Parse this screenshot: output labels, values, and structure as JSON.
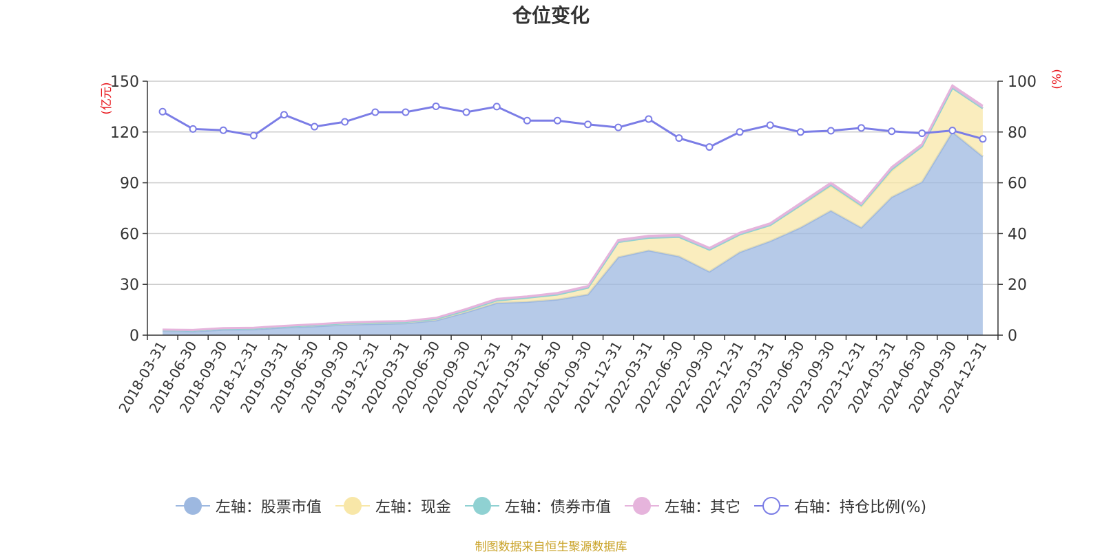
{
  "chart_data": {
    "type": "area",
    "title": "仓位变化",
    "left_unit": "(亿元)",
    "right_unit": "(%)",
    "left_ylim": [
      0,
      150
    ],
    "left_ticks": [
      0,
      30,
      60,
      90,
      120,
      150
    ],
    "right_ylim": [
      0,
      100
    ],
    "right_ticks": [
      0,
      20,
      40,
      60,
      80,
      100
    ],
    "grid": true,
    "legend_position": "bottom",
    "categories": [
      "2018-03-31",
      "2018-06-30",
      "2018-09-30",
      "2018-12-31",
      "2019-03-31",
      "2019-06-30",
      "2019-09-30",
      "2019-12-31",
      "2020-03-31",
      "2020-06-30",
      "2020-09-30",
      "2020-12-31",
      "2021-03-31",
      "2021-06-30",
      "2021-09-30",
      "2021-12-31",
      "2022-03-31",
      "2022-06-30",
      "2022-09-30",
      "2022-12-31",
      "2023-03-31",
      "2023-06-30",
      "2023-09-30",
      "2023-12-31",
      "2024-03-31",
      "2024-06-30",
      "2024-09-30",
      "2024-12-31"
    ],
    "series": [
      {
        "name": "左轴：股票市值",
        "axis": "left",
        "color": "#9db8e0",
        "values": [
          2.5,
          2.2,
          3.2,
          3.4,
          4.5,
          5.2,
          6.2,
          6.6,
          7.0,
          8.7,
          13.5,
          19.0,
          19.6,
          21.0,
          24.0,
          46.0,
          50.0,
          46.5,
          37.5,
          49.0,
          55.5,
          63.5,
          73.5,
          63.5,
          81.5,
          90.5,
          120.0,
          105.5
        ]
      },
      {
        "name": "左轴：现金",
        "axis": "left",
        "color": "#f8e7a8",
        "values": [
          0.5,
          0.6,
          0.6,
          0.6,
          0.6,
          0.7,
          0.8,
          0.9,
          0.8,
          0.9,
          1.2,
          1.5,
          2.5,
          3.0,
          4.0,
          9.0,
          7.5,
          11.5,
          13.0,
          10.5,
          9.5,
          13.0,
          14.5,
          12.5,
          15.5,
          21.0,
          26.0,
          28.5
        ]
      },
      {
        "name": "左轴：债券市值",
        "axis": "left",
        "color": "#8fd1d2",
        "values": [
          0,
          0,
          0,
          0,
          0,
          0,
          0,
          0,
          0,
          0,
          0,
          0,
          0,
          0,
          0,
          0,
          0,
          0,
          0,
          0,
          0,
          0.3,
          0.8,
          0.7,
          1.0,
          0,
          0,
          0
        ]
      },
      {
        "name": "左轴：其它",
        "axis": "left",
        "color": "#e6b4dc",
        "values": [
          0.3,
          0.3,
          0.4,
          0.4,
          0.4,
          0.5,
          0.5,
          0.5,
          0.5,
          0.6,
          0.8,
          0.9,
          0.8,
          0.9,
          1.0,
          1.2,
          1.2,
          1.2,
          1.0,
          1.0,
          1.0,
          1.2,
          1.2,
          1.0,
          1.2,
          1.3,
          1.5,
          1.5
        ]
      },
      {
        "name": "右轴：持仓比例(%)",
        "axis": "right",
        "color": "#7b7de6",
        "values": [
          88.0,
          81.2,
          80.7,
          78.6,
          86.8,
          82.1,
          84.0,
          87.8,
          87.8,
          90.1,
          87.8,
          90.0,
          84.5,
          84.5,
          83.0,
          81.8,
          85.1,
          77.6,
          74.1,
          80.0,
          82.7,
          80.0,
          80.5,
          81.6,
          80.3,
          79.5,
          80.6,
          77.3
        ]
      }
    ]
  },
  "legend_items": [
    {
      "label": "左轴：股票市值",
      "color": "#9db8e0",
      "hollow": false
    },
    {
      "label": "左轴：现金",
      "color": "#f8e7a8",
      "hollow": false
    },
    {
      "label": "左轴：债券市值",
      "color": "#8fd1d2",
      "hollow": false
    },
    {
      "label": "左轴：其它",
      "color": "#e6b4dc",
      "hollow": false
    },
    {
      "label": "右轴：持仓比例(%)",
      "color": "#7b7de6",
      "hollow": true
    }
  ],
  "source_note": "制图数据来自恒生聚源数据库",
  "colors": {
    "unit_label": "#e8141a",
    "axis": "#333333",
    "grid": "#cccccc"
  }
}
